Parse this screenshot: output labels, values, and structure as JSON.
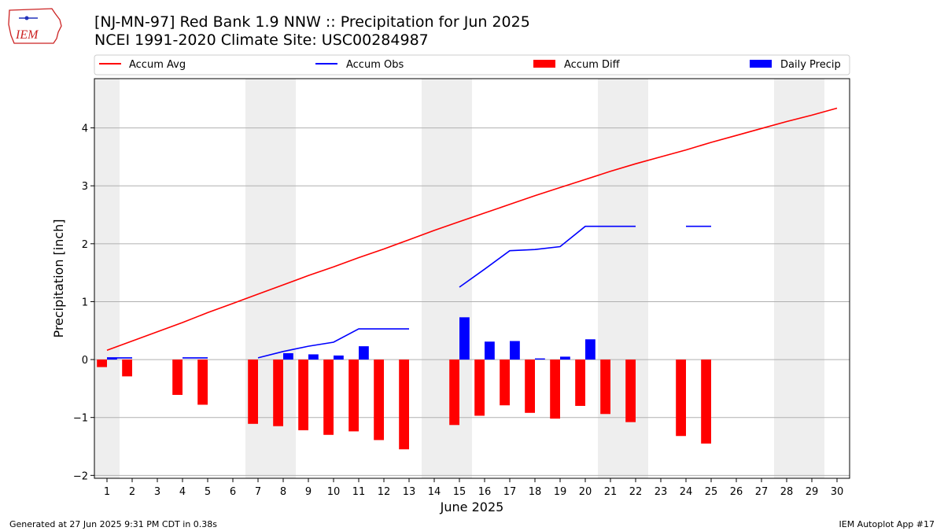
{
  "header": {
    "title": "[NJ-MN-97] Red Bank 1.9 NNW :: Precipitation for Jun 2025",
    "subtitle": "NCEI 1991-2020 Climate Site: USC00284987",
    "logo_text": "IEM"
  },
  "footer": {
    "generated": "Generated at 27 Jun 2025 9:31 PM CDT in 0.38s",
    "app": "IEM Autoplot App #17"
  },
  "colors": {
    "accum_avg": "#ff0000",
    "accum_obs": "#0000ff",
    "accum_diff": "#ff0000",
    "daily_precip": "#0000ff",
    "weekend_shade": "#eeeeee",
    "grid": "#b0b0b0",
    "logo": "#cc2222"
  },
  "chart_data": {
    "type": "bar",
    "xlabel": "June 2025",
    "ylabel": "Precipitation [inch]",
    "days": [
      1,
      2,
      3,
      4,
      5,
      6,
      7,
      8,
      9,
      10,
      11,
      12,
      13,
      14,
      15,
      16,
      17,
      18,
      19,
      20,
      21,
      22,
      23,
      24,
      25,
      26,
      27,
      28,
      29,
      30
    ],
    "xlim": [
      0.5,
      30.5
    ],
    "ylim": [
      -2.05,
      4.85
    ],
    "yticks": [
      -2,
      -1,
      0,
      1,
      2,
      3,
      4
    ],
    "ytick_labels": [
      "−2",
      "−1",
      "0",
      "1",
      "2",
      "3",
      "4"
    ],
    "grid": "horizontal",
    "legend_position": "top",
    "shaded_weekends": [
      [
        0.5,
        1.5
      ],
      [
        6.5,
        8.5
      ],
      [
        13.5,
        15.5
      ],
      [
        20.5,
        22.5
      ],
      [
        27.5,
        29.5
      ]
    ],
    "series": [
      {
        "name": "Accum Avg",
        "kind": "line",
        "x": [
          1,
          2,
          3,
          4,
          5,
          6,
          7,
          8,
          9,
          10,
          11,
          12,
          13,
          14,
          15,
          16,
          17,
          18,
          19,
          20,
          21,
          22,
          23,
          24,
          25,
          26,
          27,
          28,
          29,
          30
        ],
        "values": [
          0.16,
          0.32,
          0.48,
          0.64,
          0.81,
          0.97,
          1.13,
          1.29,
          1.45,
          1.6,
          1.76,
          1.91,
          2.07,
          2.23,
          2.38,
          2.53,
          2.68,
          2.83,
          2.97,
          3.11,
          3.25,
          3.38,
          3.5,
          3.62,
          3.75,
          3.87,
          3.99,
          4.11,
          4.22,
          4.34
        ]
      },
      {
        "name": "Accum Obs",
        "kind": "line",
        "x": [
          1,
          2,
          3,
          4,
          5,
          6,
          7,
          8,
          9,
          10,
          11,
          12,
          13,
          14,
          15,
          16,
          17,
          18,
          19,
          20,
          21,
          22,
          23,
          24,
          25,
          26,
          27,
          28,
          29,
          30
        ],
        "values": [
          0.03,
          0.03,
          null,
          0.03,
          0.03,
          null,
          0.03,
          0.14,
          0.23,
          0.3,
          0.53,
          0.53,
          0.53,
          null,
          1.25,
          1.56,
          1.88,
          1.9,
          1.95,
          2.3,
          2.3,
          2.3,
          null,
          2.3,
          2.3,
          null,
          null,
          null,
          null,
          null
        ]
      },
      {
        "name": "Accum Diff",
        "kind": "bar",
        "x": [
          1,
          2,
          3,
          4,
          5,
          6,
          7,
          8,
          9,
          10,
          11,
          12,
          13,
          14,
          15,
          16,
          17,
          18,
          19,
          20,
          21,
          22,
          23,
          24,
          25,
          26,
          27,
          28,
          29,
          30
        ],
        "values": [
          -0.13,
          -0.29,
          null,
          -0.61,
          -0.78,
          null,
          -1.11,
          -1.15,
          -1.22,
          -1.3,
          -1.24,
          -1.39,
          -1.55,
          null,
          -1.13,
          -0.97,
          -0.79,
          -0.92,
          -1.02,
          -0.8,
          -0.94,
          -1.08,
          null,
          -1.32,
          -1.45,
          null,
          null,
          null,
          null,
          null
        ]
      },
      {
        "name": "Daily Precip",
        "kind": "bar",
        "x": [
          1,
          2,
          3,
          4,
          5,
          6,
          7,
          8,
          9,
          10,
          11,
          12,
          13,
          14,
          15,
          16,
          17,
          18,
          19,
          20,
          21,
          22,
          23,
          24,
          25,
          26,
          27,
          28,
          29,
          30
        ],
        "values": [
          0.03,
          0,
          null,
          0,
          0,
          null,
          0,
          0.11,
          0.09,
          0.07,
          0.23,
          0,
          0,
          null,
          0.73,
          0.31,
          0.32,
          0.02,
          0.05,
          0.35,
          0,
          0,
          null,
          0,
          0,
          null,
          null,
          null,
          null,
          null
        ]
      }
    ]
  }
}
